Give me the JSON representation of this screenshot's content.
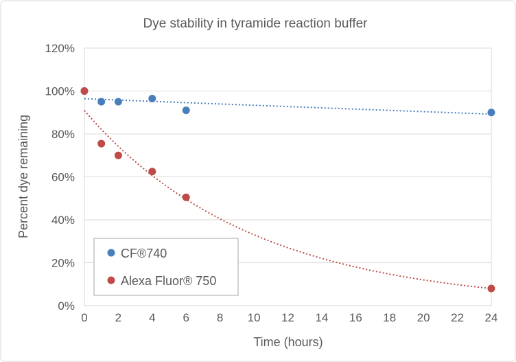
{
  "chart_data": {
    "type": "scatter",
    "title": "Dye stability in tyramide reaction buffer",
    "xlabel": "Time (hours)",
    "ylabel": "Percent dye remaining",
    "xlim": [
      0,
      24
    ],
    "ylim": [
      0,
      120
    ],
    "xticks": [
      0,
      2,
      4,
      6,
      8,
      10,
      12,
      14,
      16,
      18,
      20,
      22,
      24
    ],
    "yticks": [
      0,
      20,
      40,
      60,
      80,
      100,
      120
    ],
    "ytick_labels": [
      "0%",
      "20%",
      "40%",
      "60%",
      "80%",
      "100%",
      "120%"
    ],
    "grid": "horizontal",
    "legend_position": "bottom-left",
    "series": [
      {
        "name": "CF®740",
        "color": "#4a7ebb",
        "trendline": "exponential",
        "x": [
          0,
          1,
          2,
          4,
          6,
          24
        ],
        "y": [
          100,
          95,
          95,
          96.5,
          91,
          90
        ]
      },
      {
        "name": "Alexa Fluor® 750",
        "color": "#be4b48",
        "trendline": "exponential",
        "x": [
          0,
          1,
          2,
          4,
          6,
          24
        ],
        "y": [
          100,
          75.5,
          70,
          62.5,
          50.5,
          8
        ]
      }
    ]
  }
}
